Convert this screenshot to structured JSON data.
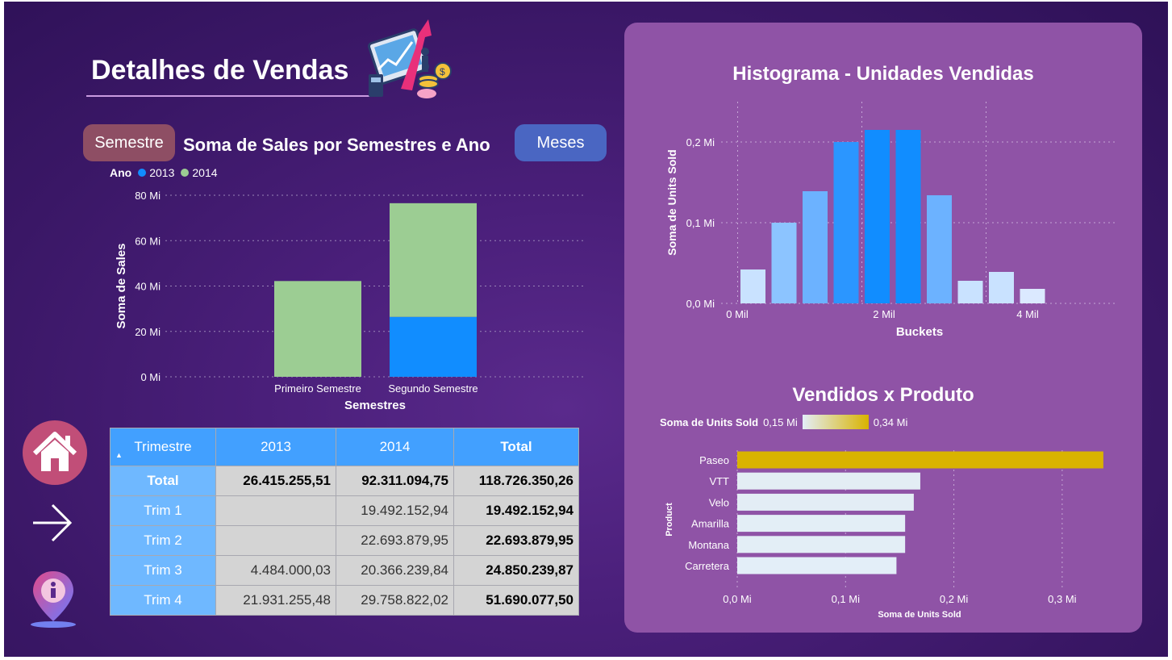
{
  "header": {
    "title": "Detalhes de Vendas"
  },
  "buttons": {
    "semestre": "Semestre",
    "meses": "Meses"
  },
  "sales_chart": {
    "legend_title": "Ano",
    "legend_2013": "2013",
    "legend_2014": "2014"
  },
  "table": {
    "headers": [
      "Trimestre",
      "2013",
      "2014",
      "Total"
    ],
    "rows": [
      {
        "label": "Total",
        "v2013": "26.415.255,51",
        "v2014": "92.311.094,75",
        "total": "118.726.350,26"
      },
      {
        "label": "Trim 1",
        "v2013": "",
        "v2014": "19.492.152,94",
        "total": "19.492.152,94"
      },
      {
        "label": "Trim 2",
        "v2013": "",
        "v2014": "22.693.879,95",
        "total": "22.693.879,95"
      },
      {
        "label": "Trim 3",
        "v2013": "4.484.000,03",
        "v2014": "20.366.239,84",
        "total": "24.850.239,87"
      },
      {
        "label": "Trim 4",
        "v2013": "21.931.255,48",
        "v2014": "29.758.822,02",
        "total": "51.690.077,50"
      }
    ]
  },
  "nav": {
    "home": "home-icon",
    "next": "arrow-right-icon",
    "info": "info-icon"
  },
  "colors": {
    "s2013": "#118dff",
    "s2014": "#9ccd93",
    "gold": "#d9b300"
  },
  "chart_data": [
    {
      "type": "bar",
      "stacked": true,
      "title": "Soma de Sales por Semestres e Ano",
      "xlabel": "Semestres",
      "ylabel": "Soma de Sales",
      "categories": [
        "Primeiro Semestre",
        "Segundo Semestre"
      ],
      "series": [
        {
          "name": "2013",
          "values": [
            0,
            26.4
          ]
        },
        {
          "name": "2014",
          "values": [
            42.2,
            50.1
          ]
        }
      ],
      "ylim": [
        0,
        80
      ],
      "yticks": [
        "0 Mi",
        "20 Mi",
        "40 Mi",
        "60 Mi",
        "80 Mi"
      ],
      "legend": "top-left",
      "grid": true
    },
    {
      "type": "bar",
      "title": "Histograma - Unidades Vendidas",
      "xlabel": "Buckets",
      "ylabel": "Soma de Units Sold",
      "x": [
        0,
        0.5,
        1,
        1.5,
        2,
        2.5,
        3,
        3.5,
        4,
        4.5
      ],
      "values": [
        0.042,
        0.1,
        0.139,
        0.2,
        0.215,
        0.215,
        0.134,
        0.028,
        0.039,
        0.018
      ],
      "bar_colors": [
        "#c9e2ff",
        "#8cc4ff",
        "#6cb2ff",
        "#2b96ff",
        "#118dff",
        "#118dff",
        "#6cb2ff",
        "#c9e2ff",
        "#c9e2ff",
        "#dbe9ff"
      ],
      "xticks": [
        "0 Mil",
        "2 Mil",
        "4 Mil"
      ],
      "yticks": [
        "0,0 Mi",
        "0,1 Mi",
        "0,2 Mi"
      ],
      "ylim": [
        0,
        0.25
      ],
      "grid": true
    },
    {
      "type": "bar",
      "orientation": "horizontal",
      "title": "Vendidos x Produto",
      "xlabel": "Soma de Units Sold",
      "ylabel": "Product",
      "categories": [
        "Paseo",
        "VTT",
        "Velo",
        "Amarilla",
        "Montana",
        "Carretera"
      ],
      "values": [
        0.338,
        0.169,
        0.163,
        0.155,
        0.155,
        0.147
      ],
      "legend_title": "Soma de Units Sold",
      "color_scale": {
        "min_label": "0,15 Mi",
        "max_label": "0,34 Mi",
        "min_color": "#e3eef8",
        "max_color": "#d9b300"
      },
      "xticks": [
        "0,0 Mi",
        "0,1 Mi",
        "0,2 Mi",
        "0,3 Mi"
      ],
      "xlim": [
        0,
        0.35
      ],
      "grid": true
    }
  ]
}
